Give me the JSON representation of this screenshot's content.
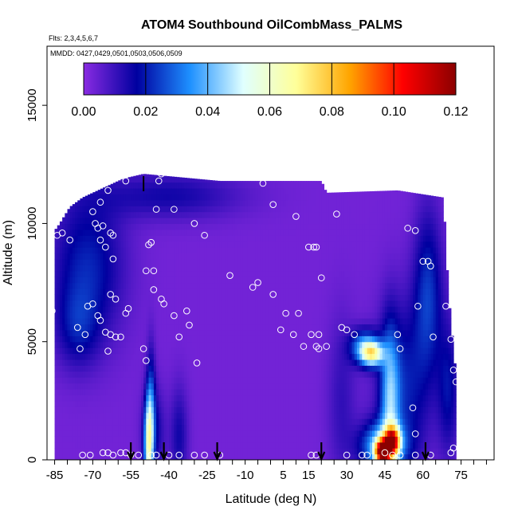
{
  "chart_data": {
    "type": "heatmap",
    "title": "ATOM4 Southbound OilCombMass_PALMS",
    "flights_note": "Flts: 2,3,4,5,6,7",
    "dates_note": "MMDD: 0427,0429,0501,0503,0506,0509",
    "xlabel": "Latitude (deg N)",
    "ylabel": "Altitude (m)",
    "xlim": [
      -88,
      88
    ],
    "ylim": [
      0,
      17500
    ],
    "x_ticks": [
      -85,
      -70,
      -55,
      -40,
      -25,
      -10,
      5,
      15,
      30,
      45,
      60,
      75
    ],
    "y_ticks": [
      0,
      5000,
      10000,
      15000
    ],
    "colorbar": {
      "min": 0,
      "max": 0.12,
      "ticks": [
        "0.00",
        "0.02",
        "0.04",
        "0.06",
        "0.08",
        "0.10",
        "0.12"
      ],
      "colors": [
        "#8a2be2",
        "#0000a0",
        "#1e90ff",
        "#e0ffff",
        "#ffff99",
        "#ffa500",
        "#ff0000",
        "#8b0000"
      ]
    },
    "profile_markers_lat": [
      -55,
      -42,
      -21,
      20,
      61
    ],
    "extra_marker_lat": -50,
    "extent": [
      {
        "lat": -85,
        "top": 9700
      },
      {
        "lat": -83,
        "top": 10000
      },
      {
        "lat": -79,
        "top": 10700
      },
      {
        "lat": -74,
        "top": 11100
      },
      {
        "lat": -66,
        "top": 11500
      },
      {
        "lat": -58,
        "top": 11900
      },
      {
        "lat": -50,
        "top": 12100
      },
      {
        "lat": -40,
        "top": 12000
      },
      {
        "lat": -20,
        "top": 11800
      },
      {
        "lat": 0,
        "top": 11800
      },
      {
        "lat": 20,
        "top": 11800
      },
      {
        "lat": 22,
        "top": 11300
      },
      {
        "lat": 50,
        "top": 11400
      },
      {
        "lat": 68,
        "top": 11100
      },
      {
        "lat": 70,
        "top": 7000
      },
      {
        "lat": 73,
        "top": 3500
      },
      {
        "lat": 73,
        "top": 0
      }
    ],
    "features": [
      {
        "name": "southern-upper-blob",
        "lat": -72,
        "alt": 8200,
        "slat": 10,
        "salt": 2200,
        "value": 0.018
      },
      {
        "name": "southern-lower-blob",
        "lat": -76,
        "alt": 5600,
        "slat": 6,
        "salt": 1200,
        "value": 0.012
      },
      {
        "name": "southern-top-band",
        "lat": -40,
        "alt": 11200,
        "slat": 20,
        "salt": 700,
        "value": 0.012
      },
      {
        "name": "plume-west-core",
        "lat": -48,
        "alt": 600,
        "slat": 1.2,
        "salt": 1400,
        "value": 0.05
      },
      {
        "name": "plume-west-stalk",
        "lat": -47,
        "alt": 2600,
        "slat": 1.2,
        "salt": 1600,
        "value": 0.018
      },
      {
        "name": "plume-west-lower",
        "lat": -46,
        "alt": 1200,
        "slat": 3,
        "salt": 1300,
        "value": 0.014
      },
      {
        "name": "plume-mid",
        "lat": -36,
        "alt": 1000,
        "slat": 2.5,
        "salt": 1500,
        "value": 0.012
      },
      {
        "name": "north-column-upper",
        "lat": 62,
        "alt": 7000,
        "slat": 4,
        "salt": 2500,
        "value": 0.02
      },
      {
        "name": "north-diagonal",
        "lat": 52,
        "alt": 3000,
        "slat": 7,
        "salt": 2500,
        "value": 0.018
      },
      {
        "name": "north-mid-band",
        "lat": 37,
        "alt": 4800,
        "slat": 4,
        "salt": 500,
        "value": 0.032
      },
      {
        "name": "north-mid-light",
        "lat": 40,
        "alt": 4500,
        "slat": 3,
        "salt": 350,
        "value": 0.05
      },
      {
        "name": "north-column-bright",
        "lat": 47,
        "alt": 2500,
        "slat": 2.5,
        "salt": 2200,
        "value": 0.03
      },
      {
        "name": "north-low-broad",
        "lat": 44,
        "alt": 600,
        "slat": 6,
        "salt": 700,
        "value": 0.04
      },
      {
        "name": "north-low-hot",
        "lat": 44,
        "alt": 350,
        "slat": 2,
        "salt": 350,
        "value": 0.09
      },
      {
        "name": "north-low-yellow",
        "lat": 48,
        "alt": 800,
        "slat": 2,
        "salt": 400,
        "value": 0.07
      },
      {
        "name": "north-surface-east",
        "lat": 70,
        "alt": 3000,
        "slat": 3,
        "salt": 2000,
        "value": 0.015
      },
      {
        "name": "tropical-lower",
        "lat": 28,
        "alt": 2500,
        "slat": 4,
        "salt": 2500,
        "value": 0.008
      }
    ],
    "samples": [
      [
        -86,
        6300
      ],
      [
        -84,
        9500
      ],
      [
        -82,
        9600
      ],
      [
        -79,
        9300
      ],
      [
        -76,
        5600
      ],
      [
        -75,
        4700
      ],
      [
        -73,
        5300
      ],
      [
        -72,
        6500
      ],
      [
        -70,
        6600
      ],
      [
        -68,
        6100
      ],
      [
        -70,
        10500
      ],
      [
        -69,
        10000
      ],
      [
        -68,
        9800
      ],
      [
        -66,
        9900
      ],
      [
        -67,
        9300
      ],
      [
        -65,
        9000
      ],
      [
        -62,
        9500
      ],
      [
        -63,
        9600
      ],
      [
        -62,
        8500
      ],
      [
        -63,
        7000
      ],
      [
        -61,
        6800
      ],
      [
        -67,
        5900
      ],
      [
        -65,
        5400
      ],
      [
        -64,
        4600
      ],
      [
        -63,
        5300
      ],
      [
        -61,
        5200
      ],
      [
        -59,
        5200
      ],
      [
        -57,
        6200
      ],
      [
        -56,
        6400
      ],
      [
        -50,
        4700
      ],
      [
        -49,
        4200
      ],
      [
        -48,
        9100
      ],
      [
        -47,
        9200
      ],
      [
        -49,
        8000
      ],
      [
        -46,
        8000
      ],
      [
        -46,
        7200
      ],
      [
        -43,
        6800
      ],
      [
        -42,
        6600
      ],
      [
        -38,
        6100
      ],
      [
        -36,
        5200
      ],
      [
        -33,
        6300
      ],
      [
        -32,
        5700
      ],
      [
        -29,
        4100
      ],
      [
        -45,
        10600
      ],
      [
        -38,
        10600
      ],
      [
        -30,
        10000
      ],
      [
        -26,
        9500
      ],
      [
        -16,
        7800
      ],
      [
        -7,
        7300
      ],
      [
        -5,
        7500
      ],
      [
        -3,
        11700
      ],
      [
        1,
        10800
      ],
      [
        1,
        7000
      ],
      [
        4,
        5500
      ],
      [
        6,
        6200
      ],
      [
        9,
        5300
      ],
      [
        10,
        10300
      ],
      [
        11,
        6200
      ],
      [
        13,
        4800
      ],
      [
        15,
        9000
      ],
      [
        16,
        5300
      ],
      [
        17,
        9000
      ],
      [
        18,
        9000
      ],
      [
        18,
        4800
      ],
      [
        19,
        5300
      ],
      [
        19,
        4700
      ],
      [
        20,
        7700
      ],
      [
        22,
        4800
      ],
      [
        24,
        11800
      ],
      [
        26,
        10400
      ],
      [
        28,
        5600
      ],
      [
        30,
        5500
      ],
      [
        33,
        5300
      ],
      [
        50,
        5300
      ],
      [
        51,
        4700
      ],
      [
        54,
        9800
      ],
      [
        57,
        9700
      ],
      [
        58,
        6500
      ],
      [
        60,
        8400
      ],
      [
        62,
        8400
      ],
      [
        63,
        8200
      ],
      [
        64,
        5200
      ],
      [
        65,
        11500
      ],
      [
        67,
        11700
      ],
      [
        69,
        6500
      ],
      [
        71,
        5100
      ],
      [
        72,
        3800
      ],
      [
        73,
        3300
      ],
      [
        -57,
        11800
      ],
      [
        -64,
        11400
      ],
      [
        -67,
        10900
      ],
      [
        -44,
        11800
      ],
      [
        -43,
        12100
      ],
      [
        56,
        2200
      ],
      [
        57,
        1100
      ],
      [
        -55,
        200
      ],
      [
        -57,
        300
      ],
      [
        -59,
        300
      ],
      [
        -62,
        200
      ],
      [
        -64,
        300
      ],
      [
        -66,
        300
      ],
      [
        -71,
        200
      ],
      [
        -74,
        200
      ],
      [
        -52,
        200
      ],
      [
        -47,
        200
      ],
      [
        -45,
        200
      ],
      [
        -40,
        200
      ],
      [
        -36,
        200
      ],
      [
        -30,
        200
      ],
      [
        -26,
        200
      ],
      [
        -20,
        200
      ],
      [
        16,
        200
      ],
      [
        18,
        200
      ],
      [
        30,
        200
      ],
      [
        36,
        200
      ],
      [
        38,
        200
      ],
      [
        45,
        300
      ],
      [
        48,
        200
      ],
      [
        51,
        200
      ],
      [
        57,
        200
      ],
      [
        63,
        200
      ],
      [
        71,
        300
      ],
      [
        72,
        500
      ]
    ]
  }
}
